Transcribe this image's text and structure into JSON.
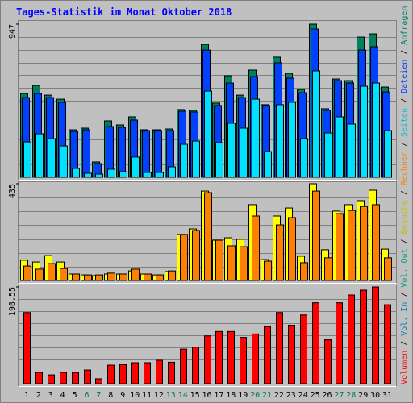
{
  "chart_data": [
    {
      "type": "bar",
      "title": "Tages-Statistik im Monat Oktober 2018",
      "ylim": [
        0,
        947
      ],
      "yticks": [
        947
      ],
      "series": [
        {
          "name": "Anfragen",
          "color": "#00805c",
          "values": [
            518,
            568,
            508,
            483,
            294,
            304,
            95,
            349,
            324,
            374,
            294,
            294,
            299,
            419,
            414,
            822,
            459,
            628,
            508,
            663,
            449,
            743,
            643,
            543,
            947,
            424,
            608,
            598,
            867,
            887,
            558
          ]
        },
        {
          "name": "Dateien",
          "color": "#0040ff",
          "values": [
            493,
            518,
            493,
            464,
            284,
            294,
            85,
            314,
            309,
            354,
            289,
            289,
            289,
            409,
            404,
            787,
            444,
            583,
            493,
            623,
            444,
            708,
            613,
            523,
            917,
            414,
            598,
            583,
            787,
            807,
            528
          ]
        },
        {
          "name": "Seiten",
          "color": "#00e0ff",
          "values": [
            219,
            269,
            239,
            194,
            55,
            25,
            20,
            50,
            35,
            125,
            30,
            30,
            65,
            204,
            224,
            533,
            214,
            334,
            304,
            483,
            159,
            449,
            464,
            239,
            658,
            274,
            374,
            329,
            563,
            583,
            289
          ]
        }
      ]
    },
    {
      "type": "bar",
      "ylim": [
        0,
        435
      ],
      "yticks": [
        435
      ],
      "series": [
        {
          "name": "Besuche",
          "color": "#ffff00",
          "values": [
            91,
            83,
            112,
            83,
            29,
            25,
            22,
            29,
            29,
            43,
            29,
            25,
            40,
            207,
            232,
            402,
            181,
            192,
            185,
            341,
            94,
            290,
            326,
            109,
            435,
            138,
            312,
            341,
            359,
            406,
            141
          ]
        },
        {
          "name": "Rechner",
          "color": "#ff8000",
          "values": [
            65,
            51,
            76,
            54,
            29,
            25,
            25,
            33,
            29,
            51,
            29,
            25,
            43,
            207,
            225,
            395,
            181,
            156,
            152,
            290,
            87,
            250,
            283,
            80,
            402,
            102,
            301,
            315,
            333,
            341,
            102
          ]
        }
      ]
    },
    {
      "type": "bar",
      "ylim": [
        0,
        198.55
      ],
      "yticks": [
        198.55
      ],
      "categories": [
        "1",
        "2",
        "3",
        "4",
        "5",
        "6",
        "7",
        "8",
        "9",
        "10",
        "11",
        "12",
        "13",
        "14",
        "15",
        "16",
        "17",
        "18",
        "19",
        "20",
        "21",
        "22",
        "23",
        "24",
        "25",
        "26",
        "27",
        "28",
        "29",
        "30",
        "31"
      ],
      "category_colors": [
        "#000000",
        "#000000",
        "#000000",
        "#000000",
        "#000000",
        "#008040",
        "#008040",
        "#000000",
        "#000000",
        "#000000",
        "#000000",
        "#000000",
        "#008040",
        "#008040",
        "#000000",
        "#000000",
        "#000000",
        "#000000",
        "#000000",
        "#008040",
        "#008040",
        "#000000",
        "#000000",
        "#000000",
        "#000000",
        "#000000",
        "#008040",
        "#008040",
        "#000000",
        "#000000",
        "#000000"
      ],
      "legend_extra": [
        {
          "name": "Vol. In",
          "color": "#0080c0"
        },
        {
          "name": "Vol. Out",
          "color": "#00a080"
        }
      ],
      "legend_separator": "/",
      "series": [
        {
          "name": "Volumen",
          "color": "#ff0000",
          "values": [
            146,
            23,
            18,
            23,
            23,
            28,
            10,
            38,
            39,
            43,
            43,
            48,
            44,
            71,
            75,
            98,
            107,
            107,
            95,
            102,
            117,
            146,
            120,
            141,
            166,
            90,
            166,
            182,
            192,
            198.55,
            162
          ]
        }
      ]
    }
  ]
}
